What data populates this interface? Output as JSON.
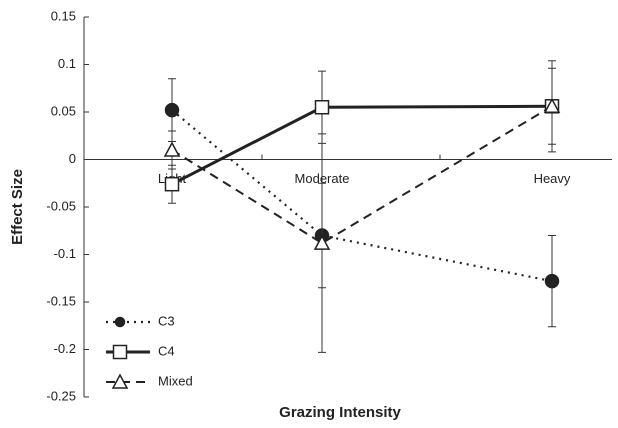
{
  "chart_data": {
    "type": "line",
    "xlabel": "Grazing Intensity",
    "ylabel": "Effect Size",
    "categories": [
      "Light",
      "Moderate",
      "Heavy"
    ],
    "ylim": [
      -0.25,
      0.15
    ],
    "yticks": [
      -0.25,
      -0.2,
      -0.15,
      -0.1,
      -0.05,
      0,
      0.05,
      0.1,
      0.15
    ],
    "legend": "lower left",
    "series": [
      {
        "name": "C3",
        "color": "#222222",
        "marker": "circle",
        "dash": "dotted",
        "values": [
          0.052,
          -0.08,
          -0.128
        ],
        "errors": [
          0.033,
          0.055,
          0.048
        ]
      },
      {
        "name": "C4",
        "color": "#222222",
        "marker": "square",
        "dash": "solid",
        "values": [
          -0.026,
          0.055,
          0.056
        ],
        "errors": [
          0.02,
          0.038,
          0.048
        ]
      },
      {
        "name": "Mixed",
        "color": "#222222",
        "marker": "triangle",
        "dash": "dashed",
        "values": [
          0.01,
          -0.088,
          0.056
        ],
        "errors": [
          0.02,
          0.115,
          0.04
        ]
      }
    ]
  }
}
